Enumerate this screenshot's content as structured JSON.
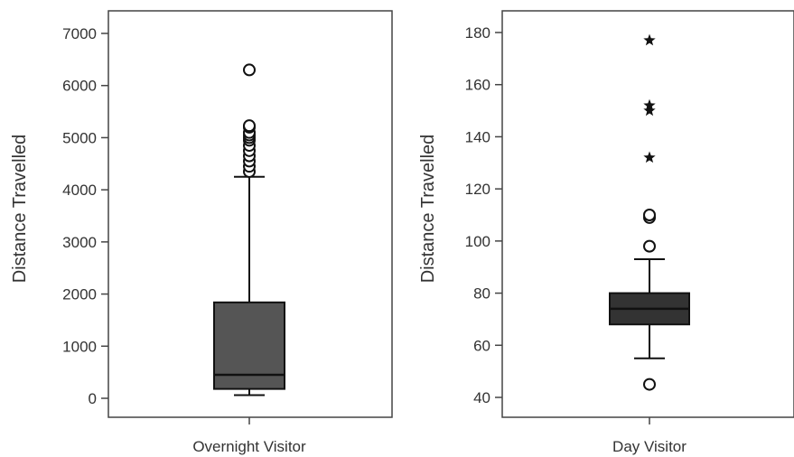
{
  "chart_data": [
    {
      "type": "box",
      "category": "Overnight Visitor",
      "ylabel": "Distance Travelled",
      "ylim": [
        -300,
        7400
      ],
      "yticks": [
        0,
        1000,
        2000,
        3000,
        4000,
        5000,
        6000,
        7000
      ],
      "box": {
        "whisker_low": 60,
        "q1": 180,
        "median": 450,
        "q3": 1840,
        "whisker_high": 4250
      },
      "outliers": [
        4350,
        4450,
        4550,
        4650,
        4750,
        4850,
        4950,
        5000,
        5050,
        5100,
        5200,
        5230,
        6300
      ],
      "extremes": [],
      "fill": "#555555"
    },
    {
      "type": "box",
      "category": "Day Visitor",
      "ylabel": "Distance Travelled",
      "ylim": [
        33,
        185
      ],
      "yticks": [
        40,
        60,
        80,
        100,
        120,
        140,
        160,
        180
      ],
      "box": {
        "whisker_low": 55,
        "q1": 68,
        "median": 74,
        "q3": 80,
        "whisker_high": 93
      },
      "outliers": [
        45,
        98,
        109,
        110
      ],
      "extremes": [
        132,
        150,
        152,
        177
      ],
      "fill": "#333333"
    }
  ]
}
